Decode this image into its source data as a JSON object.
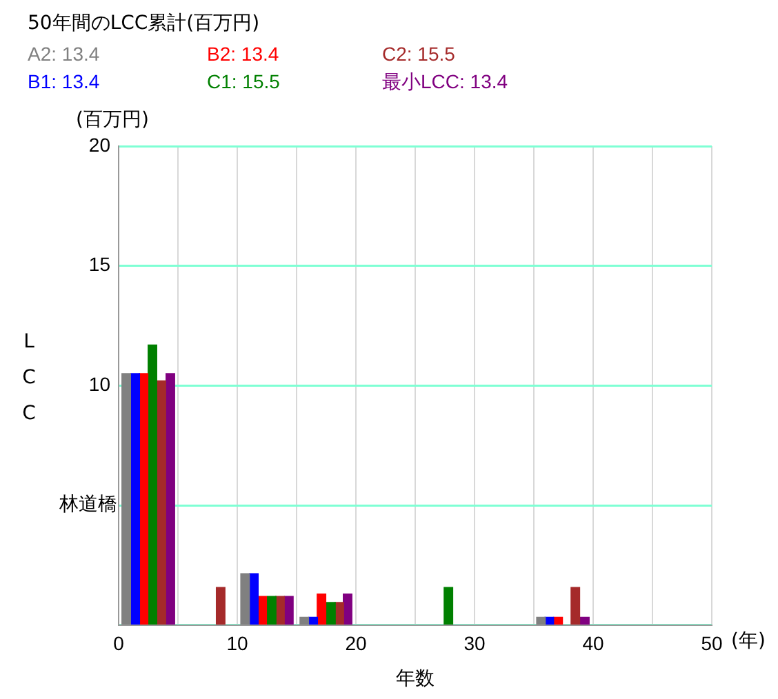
{
  "chart_data": {
    "type": "bar",
    "title": "50年間のLCC累計(百万円)",
    "xlabel": "年数",
    "ylabel": "LCC",
    "annotations": [
      "(百万円)",
      "(年)",
      {
        "text": "林道橋",
        "x": 0,
        "y": 5
      }
    ],
    "xlim": [
      0,
      50
    ],
    "xticks": [
      0,
      {
        "value": 5,
        "label": null
      },
      10,
      {
        "value": 15,
        "label": null
      },
      20,
      {
        "value": 25,
        "label": null
      },
      30,
      {
        "value": 35,
        "label": null
      },
      40,
      {
        "value": 45,
        "label": null
      },
      50
    ],
    "ylim": [
      0,
      20
    ],
    "yticks": [
      {
        "value": 0,
        "label": null
      },
      {
        "value": 5,
        "label": null
      },
      10,
      15,
      20
    ],
    "grid": true,
    "legend": "top left",
    "series": [
      {
        "name": "A2: 13.4",
        "color": "#808080",
        "x": [
          0.64,
          10.66,
          15.65,
          35.6
        ],
        "values": [
          10.5,
          2.15,
          0.33,
          0.33
        ]
      },
      {
        "name": "B1: 13.4",
        "color": "#0000ff",
        "x": [
          1.4,
          11.4,
          16.4,
          36.3
        ],
        "values": [
          10.5,
          2.15,
          0.33,
          0.33
        ]
      },
      {
        "name": "B2: 13.4",
        "color": "#ff0000",
        "x": [
          2.1,
          12.1,
          17.1,
          37.05
        ],
        "values": [
          10.5,
          1.2,
          1.3,
          0.33
        ]
      },
      {
        "name": "C1: 15.5",
        "color": "#008000",
        "x": [
          2.85,
          12.9,
          17.9,
          27.8
        ],
        "values": [
          11.7,
          1.2,
          0.95,
          1.57
        ]
      },
      {
        "name": "C2: 15.5",
        "color": "#a52a2a",
        "x": [
          3.6,
          8.6,
          13.6,
          18.6,
          38.5
        ],
        "values": [
          10.2,
          1.57,
          1.2,
          0.95,
          1.57
        ]
      },
      {
        "name": "最小LCC: 13.4",
        "color": "#800080",
        "x": [
          4.36,
          14.35,
          19.3,
          39.3
        ],
        "values": [
          10.5,
          1.2,
          1.3,
          0.33
        ]
      }
    ]
  }
}
